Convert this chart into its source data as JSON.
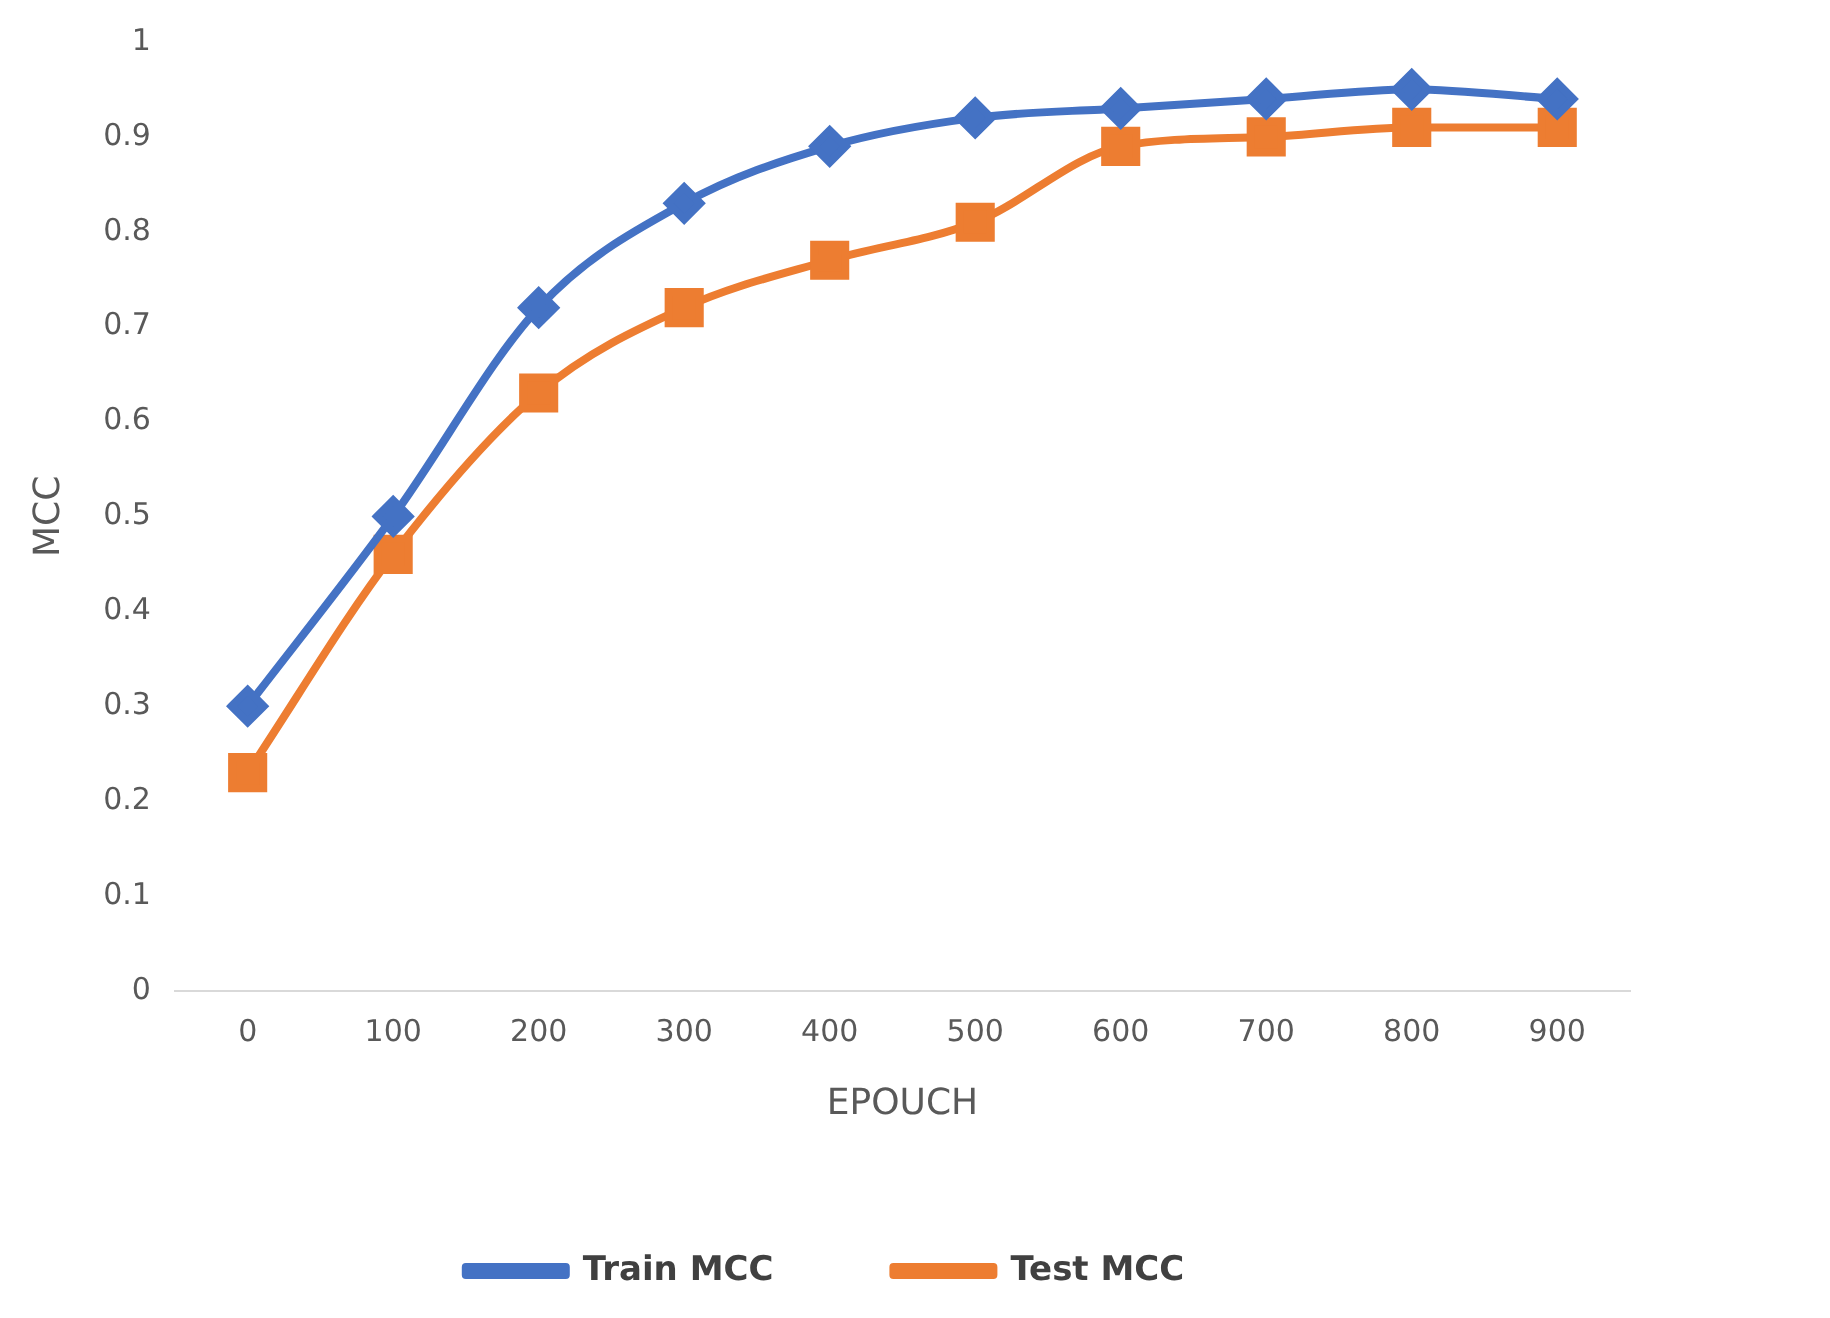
{
  "chart_data": {
    "type": "line",
    "xlabel": "EPOUCH",
    "ylabel": "MCC",
    "categories": [
      "0",
      "100",
      "200",
      "300",
      "400",
      "500",
      "600",
      "700",
      "800",
      "900"
    ],
    "series": [
      {
        "name": "Train MCC",
        "color": "#4472c4",
        "marker": "diamond",
        "values": [
          0.3,
          0.5,
          0.72,
          0.83,
          0.89,
          0.92,
          0.93,
          0.94,
          0.95,
          0.94
        ]
      },
      {
        "name": "Test MCC",
        "color": "#ed7d31",
        "marker": "square",
        "values": [
          0.23,
          0.46,
          0.63,
          0.72,
          0.77,
          0.81,
          0.89,
          0.9,
          0.91,
          0.91
        ]
      }
    ],
    "ylim": [
      0,
      1
    ],
    "yticks": [
      0,
      0.1,
      0.2,
      0.3,
      0.4,
      0.5,
      0.6,
      0.7,
      0.8,
      0.9,
      1
    ],
    "grid": false,
    "legend": "bottom"
  }
}
